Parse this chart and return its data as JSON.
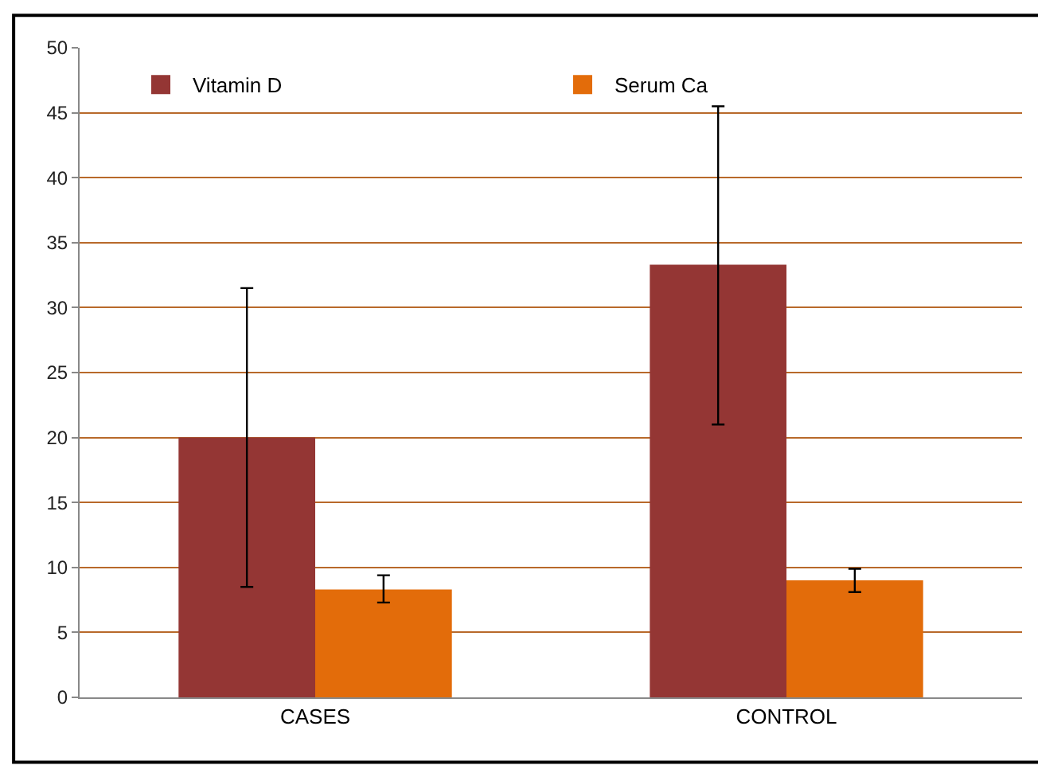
{
  "chart_data": {
    "type": "bar",
    "categories": [
      "CASES",
      "CONTROL"
    ],
    "series": [
      {
        "name": "Vitamin D",
        "color": "#943634",
        "values": [
          20,
          33.3
        ],
        "errors": [
          [
            8.5,
            31.5
          ],
          [
            21,
            45.5
          ]
        ]
      },
      {
        "name": "Serum Ca",
        "color": "#e36c0a",
        "values": [
          8.3,
          9.0
        ],
        "errors": [
          [
            7.3,
            9.4
          ],
          [
            8.1,
            9.9
          ]
        ]
      }
    ],
    "ylim": [
      0,
      50
    ],
    "yticks": [
      0,
      5,
      10,
      15,
      20,
      25,
      30,
      35,
      40,
      45,
      50
    ],
    "grid": "y",
    "legend": "top"
  }
}
